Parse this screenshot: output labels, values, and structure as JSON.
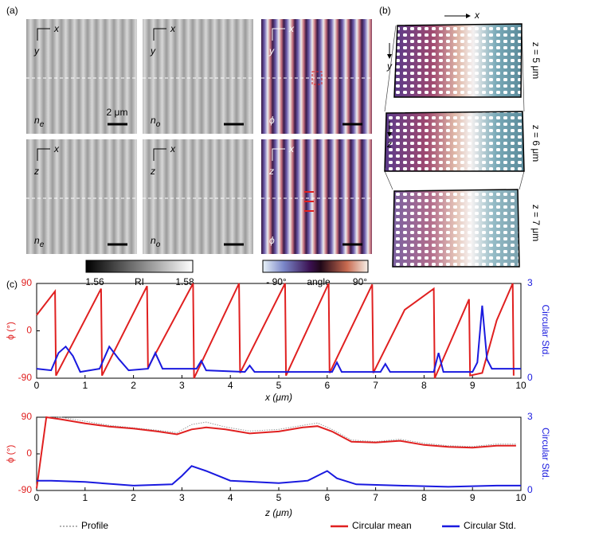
{
  "panels": {
    "a": "(a)",
    "b": "(b)",
    "c": "(c)"
  },
  "images": [
    {
      "h": "x",
      "v": "y",
      "label": "n",
      "sub": "e",
      "scale": "2 μm"
    },
    {
      "h": "x",
      "v": "y",
      "label": "n",
      "sub": "o"
    },
    {
      "h": "x",
      "v": "y",
      "label": "ϕ"
    },
    {
      "h": "x",
      "v": "z",
      "label": "n",
      "sub": "e"
    },
    {
      "h": "x",
      "v": "z",
      "label": "n",
      "sub": "o"
    },
    {
      "h": "x",
      "v": "z",
      "label": "ϕ"
    }
  ],
  "colorbars": [
    {
      "min": "1.56",
      "label": "RI",
      "max": "1.58"
    },
    {
      "min": "- 90°",
      "label": "angle",
      "max": "90°"
    }
  ],
  "director": {
    "x": "x",
    "y": "y",
    "z": "z",
    "layers": [
      "z = 5 μm",
      "z = 6 μm",
      "z = 7 μm"
    ]
  },
  "chart_data": [
    {
      "type": "line",
      "xlabel": "x (μm)",
      "ylabel": "ϕ (°)",
      "y2label": "Circular Std.",
      "xlim": [
        0,
        10
      ],
      "xticks": [
        0,
        1,
        2,
        3,
        4,
        5,
        6,
        7,
        8,
        9,
        10
      ],
      "ylim": [
        -90,
        90
      ],
      "yticks": [
        -90,
        0,
        90
      ],
      "y2lim": [
        0,
        3
      ],
      "y2ticks": [
        0,
        3
      ],
      "legend": false,
      "series": [
        {
          "name": "Circular mean",
          "color": "#e02020",
          "style": "solid",
          "x": [
            0,
            0.38,
            0.4,
            1.33,
            1.35,
            2.28,
            2.3,
            3.23,
            3.25,
            4.18,
            4.2,
            5.13,
            5.15,
            6.03,
            6.05,
            6.93,
            6.95,
            7.6,
            8.2,
            8.22,
            8.93,
            8.95,
            9.2,
            9.5,
            9.83,
            9.85
          ],
          "values": [
            30,
            75,
            -85,
            80,
            -85,
            85,
            -70,
            90,
            -90,
            90,
            -80,
            90,
            -85,
            90,
            -80,
            88,
            -80,
            40,
            80,
            -90,
            60,
            -85,
            -80,
            20,
            90,
            -85
          ]
        },
        {
          "name": "Circular Std.",
          "color": "#1a1adf",
          "style": "solid",
          "axis": "y2",
          "x": [
            0,
            0.3,
            0.45,
            0.6,
            0.75,
            0.9,
            1.3,
            1.5,
            1.7,
            1.9,
            2.3,
            2.45,
            2.6,
            3.3,
            3.4,
            3.5,
            4.3,
            4.4,
            4.5,
            5.3,
            6.1,
            6.2,
            6.3,
            7.1,
            7.2,
            7.3,
            8.2,
            8.3,
            8.4,
            9.0,
            9.1,
            9.2,
            9.3,
            9.4,
            10
          ],
          "values": [
            0.3,
            0.25,
            0.8,
            1.0,
            0.7,
            0.2,
            0.3,
            1.0,
            0.6,
            0.25,
            0.3,
            0.8,
            0.3,
            0.3,
            0.55,
            0.25,
            0.2,
            0.4,
            0.2,
            0.2,
            0.2,
            0.5,
            0.2,
            0.2,
            0.45,
            0.2,
            0.2,
            0.8,
            0.2,
            0.2,
            0.5,
            2.3,
            0.6,
            0.3,
            0.3
          ]
        }
      ]
    },
    {
      "type": "line",
      "xlabel": "z (μm)",
      "ylabel": "ϕ (°)",
      "y2label": "Circular Std.",
      "xlim": [
        0,
        10
      ],
      "xticks": [
        0,
        1,
        2,
        3,
        4,
        5,
        6,
        7,
        8,
        9,
        10
      ],
      "ylim": [
        -90,
        90
      ],
      "yticks": [
        -90,
        0,
        90
      ],
      "y2lim": [
        0,
        3
      ],
      "y2ticks": [
        0,
        3
      ],
      "legend": true,
      "series": [
        {
          "name": "Profile",
          "color": "#999999",
          "style": "dotted",
          "x": [
            0.2,
            0.5,
            1,
            1.5,
            2,
            2.5,
            2.9,
            3.2,
            3.5,
            3.9,
            4.4,
            5,
            5.5,
            5.8,
            6.1,
            6.5,
            7,
            7.5,
            8,
            8.5,
            9,
            9.5,
            9.9
          ],
          "values": [
            88,
            90,
            80,
            70,
            64,
            58,
            52,
            72,
            78,
            66,
            56,
            60,
            70,
            76,
            60,
            34,
            30,
            36,
            26,
            20,
            18,
            24,
            24
          ]
        },
        {
          "name": "Circular mean",
          "color": "#e02020",
          "style": "solid",
          "x": [
            0,
            0.2,
            0.5,
            1,
            1.5,
            2,
            2.5,
            2.9,
            3.2,
            3.5,
            3.9,
            4.4,
            5,
            5.5,
            5.8,
            6.1,
            6.5,
            7,
            7.5,
            8,
            8.5,
            9,
            9.5,
            9.9
          ],
          "values": [
            -85,
            90,
            85,
            75,
            67,
            62,
            55,
            48,
            60,
            65,
            60,
            50,
            55,
            65,
            68,
            55,
            30,
            28,
            32,
            22,
            17,
            15,
            20,
            20
          ]
        },
        {
          "name": "Circular Std.",
          "color": "#1a1adf",
          "style": "solid",
          "axis": "y2",
          "x": [
            0,
            0.3,
            1,
            2,
            2.8,
            3.0,
            3.2,
            3.5,
            4,
            5,
            5.6,
            5.9,
            6.0,
            6.2,
            6.6,
            7.5,
            8.5,
            9.5,
            10
          ],
          "values": [
            0.4,
            0.4,
            0.35,
            0.2,
            0.25,
            0.6,
            1.0,
            0.8,
            0.4,
            0.3,
            0.4,
            0.7,
            0.8,
            0.5,
            0.25,
            0.2,
            0.15,
            0.2,
            0.2
          ]
        }
      ]
    }
  ]
}
